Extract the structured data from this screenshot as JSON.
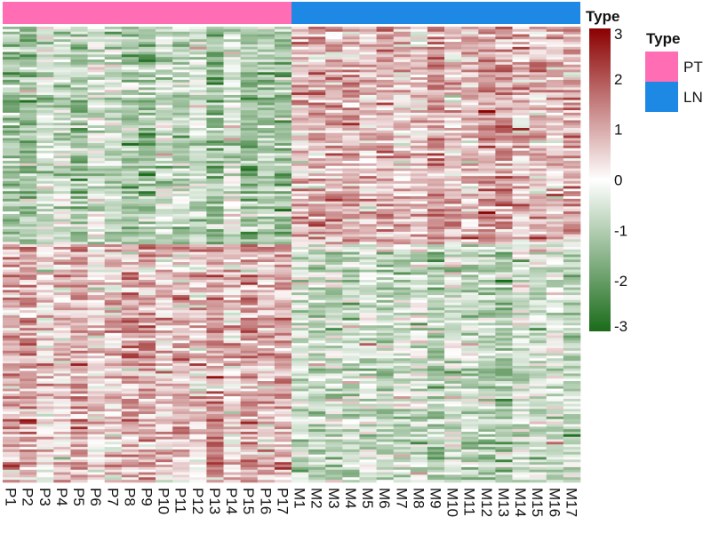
{
  "chart_data": {
    "type": "heatmap",
    "annotation": {
      "label": "Type",
      "legend_title": "Type",
      "groups": [
        {
          "name": "PT",
          "color": "#ff6eb4"
        },
        {
          "name": "LN",
          "color": "#1e88e5"
        }
      ]
    },
    "columns": [
      "P1",
      "P2",
      "P3",
      "P4",
      "P5",
      "P6",
      "P7",
      "P8",
      "P9",
      "P10",
      "P11",
      "P12",
      "P13",
      "P14",
      "P15",
      "P16",
      "P17",
      "M1",
      "M2",
      "M3",
      "M4",
      "M5",
      "M6",
      "M7",
      "M8",
      "M9",
      "M10",
      "M11",
      "M12",
      "M13",
      "M14",
      "M15",
      "M16",
      "M17"
    ],
    "column_groups": [
      "PT",
      "PT",
      "PT",
      "PT",
      "PT",
      "PT",
      "PT",
      "PT",
      "PT",
      "PT",
      "PT",
      "PT",
      "PT",
      "PT",
      "PT",
      "PT",
      "PT",
      "LN",
      "LN",
      "LN",
      "LN",
      "LN",
      "LN",
      "LN",
      "LN",
      "LN",
      "LN",
      "LN",
      "LN",
      "LN",
      "LN",
      "LN",
      "LN",
      "LN"
    ],
    "row_blocks": [
      {
        "pattern": "PT low / LN high",
        "PT_mean": -0.9,
        "LN_mean": 0.9
      },
      {
        "pattern": "PT high / LN low",
        "PT_mean": 0.7,
        "LN_mean": -0.8
      }
    ],
    "colorbar": {
      "title": "Type",
      "range": [
        -3,
        3
      ],
      "ticks": [
        3,
        2,
        1,
        0,
        -1,
        -2,
        -3
      ],
      "colors": {
        "low": "#1a6b1a",
        "mid": "#ffffff",
        "high": "#8b0000"
      }
    }
  }
}
